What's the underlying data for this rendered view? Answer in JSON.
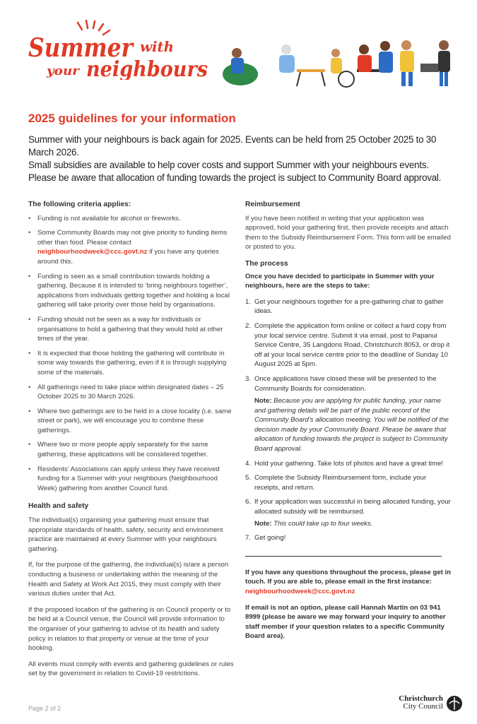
{
  "logo": {
    "text_line1": "Summer with",
    "text_line2": "your neighbours"
  },
  "heading": "2025 guidelines for your information",
  "intro": [
    "Summer with your neighbours is back again for 2025. Events can be held from 25 October 2025 to 30 March 2026.",
    "Small subsidies are available to help cover costs and support Summer with your neighbours events.",
    "Please be aware that allocation of funding towards the project is subject to Community Board approval."
  ],
  "criteria": {
    "title": "The following criteria applies:",
    "items": [
      "Funding is not available for alcohol or fireworks.",
      {
        "before": "Some Community Boards may not give priority to funding items other than food. Please contact ",
        "email": "neighbourhoodweek@ccc.govt.nz",
        "after": " if you have any queries around this."
      },
      "Funding is seen as a small contribution towards holding a gathering. Because it is intended to ‘bring neighbours together’, applications from individuals getting together and holding a local gathering will take priority over those held by organisations.",
      "Funding should not be seen as a way for individuals or organisations to hold a gathering that they would hold at other times of the year.",
      "It is expected that those holding the gathering will contribute in some way towards the gathering, even if it is through supplying some of the materials.",
      "All gatherings need to take place within designated dates – 25 October 2025 to 30 March 2026.",
      "Where two gatherings are to be held in a close locality (i.e. same street or park), we will encourage you to combine these gatherings.",
      "Where two or more people apply separately for the same gathering, these applications will be considered together.",
      "Residents’ Associations can apply unless they have received funding for a Summer with your neighbours (Neighbourhood Week) gathering from another Council fund."
    ]
  },
  "health": {
    "title": "Health and safety",
    "paras": [
      "The individual(s) organising your gathering must ensure that appropriate standards of health, safety, security and environment practice are maintained at every Summer with your neighbours gathering.",
      "If, for the purpose of the gathering, the individual(s) is/are a person conducting a business or undertaking within the meaning of the Health and Safety at Work Act 2015, they must comply with their various duties under that Act.",
      "If the proposed location of the gathering is on Council property or to be held at a Council venue, the Council will provide information to the organiser of your gathering to advise of its health and safety policy in relation to that property or venue at the time of your booking.",
      "All events must comply with events and gathering guidelines or rules set by the government in relation to Covid-19 restrictions."
    ]
  },
  "reimbursement": {
    "title": "Reimbursement",
    "text": "If you have been notified in writing that your application was approved, hold your gathering first, then provide receipts and attach them to the Subsidy Reimbursement Form. This form will be emailed or posted to you."
  },
  "process": {
    "title": "The process",
    "lead": "Once you have decided to participate in Summer with your neighbours, here are the steps to take:",
    "steps": [
      {
        "n": "1.",
        "text": "Get your neighbours together for a pre-gathering chat to gather ideas."
      },
      {
        "n": "2.",
        "text": "Complete the application form online or collect a hard copy from your local service centre. Submit it via email, post to Papanui Service Centre, 35 Langdons Road, Christchurch 8053, or drop it off at your local service centre prior to the deadline of Sunday 10 August 2025 at 5pm."
      },
      {
        "n": "3.",
        "text": "Once applications have closed these will be presented to the Community Boards for consideration.",
        "note_label": "Note:",
        "note": " Because you are applying for public funding, your name and gathering details will be part of the public record of the Community Board’s allocation meeting. You will be notified of the decision made by your Community Board. Please be aware that allocation of funding towards the project is subject to Community Board approval."
      },
      {
        "n": "4.",
        "text": "Hold your gathering. Take lots of photos and have a great time!"
      },
      {
        "n": "5.",
        "text": "Complete the Subsidy Reimbursement form, include your receipts, and return."
      },
      {
        "n": "6.",
        "text": "If your application was successful in being allocated funding, your allocated subsidy will be reimbursed.",
        "note_label": "Note:",
        "note": " This could take up to four weeks."
      },
      {
        "n": "7.",
        "text": "Get going!"
      }
    ]
  },
  "contact": {
    "text": "If you have any questions throughout the process, please get in touch. If you are able to, please email in the first instance:",
    "email": "neighbourhoodweek@ccc.govt.nz",
    "phone_text": "If email is not an option, please call Hannah Martin on 03 941 8999 (please be aware we may forward your inquiry to another staff member if your question relates to a specific Community Board area)."
  },
  "footer": {
    "page": "Page 2 of 2",
    "council_line1": "Christchurch",
    "council_line2": "City Council"
  },
  "colors": {
    "accent": "#e03a26"
  }
}
